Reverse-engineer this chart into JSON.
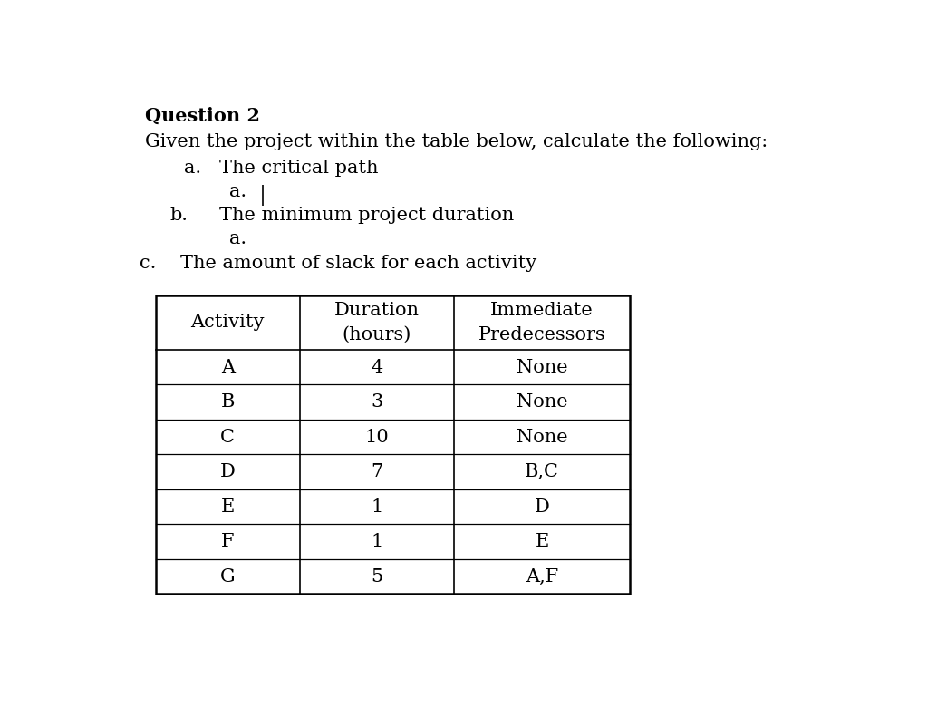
{
  "title": "Question 2",
  "intro_line": "Given the project within the table below, calculate the following:",
  "bg_color": "#ffffff",
  "text_color": "#000000",
  "font_family": "DejaVu Serif",
  "title_fontsize": 15,
  "body_fontsize": 15,
  "table_fontsize": 15,
  "table": {
    "col2_header_line1": "Duration",
    "col2_header_line2": "(hours)",
    "col3_header_line1": "Immediate",
    "col3_header_line2": "Predecessors",
    "col1_header": "Activity",
    "rows": [
      {
        "activity": "A",
        "duration": "4",
        "predecessors": "None"
      },
      {
        "activity": "B",
        "duration": "3",
        "predecessors": "None"
      },
      {
        "activity": "C",
        "duration": "10",
        "predecessors": "None"
      },
      {
        "activity": "D",
        "duration": "7",
        "predecessors": "B,C"
      },
      {
        "activity": "E",
        "duration": "1",
        "predecessors": "D"
      },
      {
        "activity": "F",
        "duration": "1",
        "predecessors": "E"
      },
      {
        "activity": "G",
        "duration": "5",
        "predecessors": "A,F"
      }
    ]
  }
}
